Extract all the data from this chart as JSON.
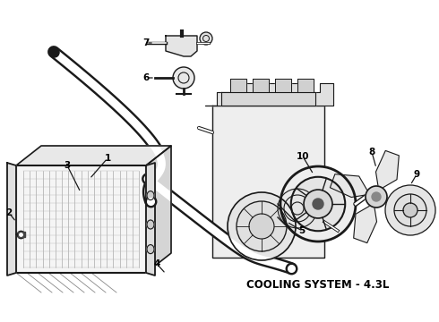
{
  "title": "COOLING SYSTEM - 4.3L",
  "bg": "#ffffff",
  "lc": "#1a1a1a",
  "title_fontsize": 8.5,
  "label_fontsize": 7.5,
  "fig_w": 4.9,
  "fig_h": 3.6,
  "dpi": 100
}
